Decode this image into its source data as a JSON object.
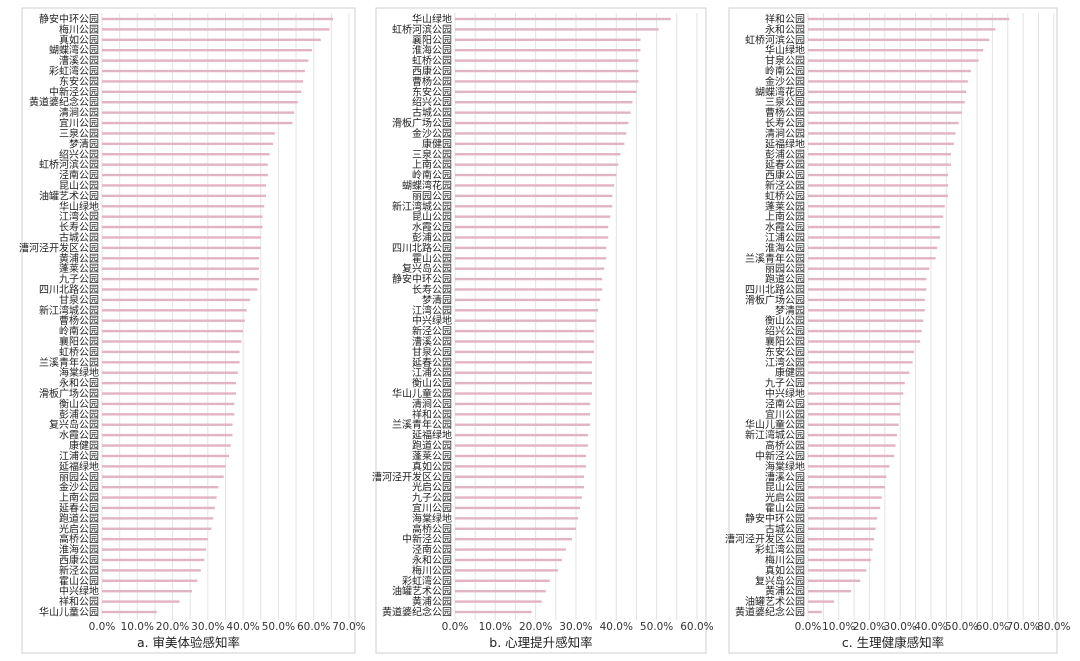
{
  "colors": {
    "bar": "#e2b3c3",
    "grid": "#e3e3e3",
    "panel_border": "#cfcfcf",
    "text": "#222222"
  },
  "chart_data": [
    {
      "type": "bar",
      "orientation": "horizontal",
      "caption": "a. 审美体验感知率",
      "xlim": [
        0,
        0.72
      ],
      "x_ticks": [
        "0.0%",
        "10.0%",
        "20.0%",
        "30.0%",
        "40.0%",
        "50.0%",
        "60.0%",
        "70.0%"
      ],
      "grid": true,
      "categories": [
        "静安中环公园",
        "梅川公园",
        "真如公园",
        "蝴蝶湾公园",
        "漕溪公园",
        "彩虹湾公园",
        "东安公园",
        "中新泾公园",
        "黄道婆纪念公园",
        "清涧公园",
        "宜川公园",
        "三泉公园",
        "梦清园",
        "绍兴公园",
        "虹桥河滨公园",
        "泾南公园",
        "昆山公园",
        "油罐艺术公园",
        "华山绿地",
        "江湾公园",
        "长寿公园",
        "古城公园",
        "漕河泾开发区公园",
        "黄浦公园",
        "蓬莱公园",
        "九子公园",
        "四川北路公园",
        "甘泉公园",
        "新江湾城公园",
        "曹杨公园",
        "岭南公园",
        "襄阳公园",
        "虹桥公园",
        "兰溪青年公园",
        "海棠绿地",
        "永和公园",
        "滑板广场公园",
        "衡山公园",
        "彭浦公园",
        "复兴岛公园",
        "水霞公园",
        "康健园",
        "江浦公园",
        "延福绿地",
        "丽园公园",
        "金沙公园",
        "上南公园",
        "延春公园",
        "跑道公园",
        "光启公园",
        "高桥公园",
        "淮海公园",
        "西康公园",
        "新泾公园",
        "霍山公园",
        "中兴绿地",
        "祥和公园",
        "华山儿童公园"
      ],
      "values": [
        0.655,
        0.645,
        0.62,
        0.595,
        0.585,
        0.575,
        0.57,
        0.565,
        0.555,
        0.545,
        0.54,
        0.49,
        0.485,
        0.475,
        0.47,
        0.47,
        0.465,
        0.465,
        0.46,
        0.455,
        0.455,
        0.45,
        0.45,
        0.445,
        0.445,
        0.445,
        0.44,
        0.42,
        0.41,
        0.405,
        0.4,
        0.395,
        0.39,
        0.39,
        0.385,
        0.38,
        0.38,
        0.375,
        0.375,
        0.37,
        0.37,
        0.365,
        0.36,
        0.35,
        0.345,
        0.33,
        0.325,
        0.32,
        0.315,
        0.31,
        0.3,
        0.295,
        0.29,
        0.28,
        0.27,
        0.255,
        0.22,
        0.155
      ]
    },
    {
      "type": "bar",
      "orientation": "horizontal",
      "caption": "b. 心理提升感知率",
      "xlim": [
        0,
        0.62
      ],
      "x_ticks": [
        "0.0%",
        "10.0%",
        "20.0%",
        "30.0%",
        "40.0%",
        "50.0%",
        "60.0%"
      ],
      "grid": true,
      "categories": [
        "华山绿地",
        "虹桥河滨公园",
        "襄阳公园",
        "淮海公园",
        "虹桥公园",
        "西康公园",
        "曹杨公园",
        "东安公园",
        "绍兴公园",
        "古城公园",
        "滑板广场公园",
        "金沙公园",
        "康健园",
        "三泉公园",
        "上南公园",
        "岭南公园",
        "蝴蝶湾花园",
        "丽园公园",
        "新江湾城公园",
        "昆山公园",
        "水霞公园",
        "彭浦公园",
        "四川北路公园",
        "霍山公园",
        "复兴岛公园",
        "静安中环公园",
        "长寿公园",
        "梦清园",
        "江湾公园",
        "中兴绿地",
        "新泾公园",
        "漕溪公园",
        "甘泉公园",
        "延春公园",
        "江浦公园",
        "衡山公园",
        "华山儿童公园",
        "清涧公园",
        "祥和公园",
        "兰溪青年公园",
        "延福绿地",
        "跑道公园",
        "蓬莱公园",
        "真如公园",
        "漕河泾开发区公园",
        "光启公园",
        "九子公园",
        "宜川公园",
        "海棠绿地",
        "高桥公园",
        "中新泾公园",
        "泾南公园",
        "永和公园",
        "梅川公园",
        "彩虹湾公园",
        "油罐艺术公园",
        "黄浦公园",
        "黄道婆纪念公园"
      ],
      "values": [
        0.535,
        0.505,
        0.46,
        0.46,
        0.455,
        0.455,
        0.455,
        0.45,
        0.44,
        0.435,
        0.43,
        0.425,
        0.42,
        0.41,
        0.405,
        0.4,
        0.395,
        0.39,
        0.39,
        0.385,
        0.38,
        0.38,
        0.375,
        0.375,
        0.37,
        0.365,
        0.365,
        0.36,
        0.355,
        0.35,
        0.345,
        0.345,
        0.345,
        0.34,
        0.34,
        0.34,
        0.34,
        0.335,
        0.335,
        0.335,
        0.33,
        0.33,
        0.325,
        0.325,
        0.32,
        0.32,
        0.315,
        0.31,
        0.305,
        0.3,
        0.29,
        0.275,
        0.265,
        0.255,
        0.235,
        0.225,
        0.215,
        0.19
      ]
    },
    {
      "type": "bar",
      "orientation": "horizontal",
      "caption": "c. 生理健康感知率",
      "xlim": [
        0,
        0.82
      ],
      "x_ticks": [
        "0.0%",
        "10.0%",
        "20.0%",
        "30.0%",
        "40.0%",
        "50.0%",
        "60.0%",
        "70.0%",
        "80.0%"
      ],
      "grid": true,
      "categories": [
        "祥和公园",
        "永和公园",
        "虹桥河滨公园",
        "华山绿地",
        "甘泉公园",
        "岭南公园",
        "金沙公园",
        "蝴蝶湾花园",
        "三泉公园",
        "曹杨公园",
        "长寿公园",
        "清涧公园",
        "延福绿地",
        "彭浦公园",
        "延春公园",
        "西康公园",
        "新泾公园",
        "虹桥公园",
        "蓬莱公园",
        "上南公园",
        "水霞公园",
        "江浦公园",
        "淮海公园",
        "兰溪青年公园",
        "丽园公园",
        "跑道公园",
        "四川北路公园",
        "滑板广场公园",
        "梦清园",
        "衡山公园",
        "绍兴公园",
        "襄阳公园",
        "东安公园",
        "江湾公园",
        "康健园",
        "九子公园",
        "中兴绿地",
        "泾南公园",
        "宜川公园",
        "华山儿童公园",
        "新江湾城公园",
        "高桥公园",
        "中新泾公园",
        "海棠绿地",
        "漕溪公园",
        "昆山公园",
        "光启公园",
        "霍山公园",
        "静安中环公园",
        "古城公园",
        "漕河泾开发区公园",
        "彩虹湾公园",
        "梅川公园",
        "真如公园",
        "复兴岛公园",
        "黄浦公园",
        "油罐艺术公园",
        "黄道婆纪念公园"
      ],
      "values": [
        0.655,
        0.61,
        0.59,
        0.57,
        0.555,
        0.53,
        0.52,
        0.515,
        0.51,
        0.5,
        0.49,
        0.48,
        0.475,
        0.465,
        0.465,
        0.455,
        0.455,
        0.455,
        0.445,
        0.44,
        0.43,
        0.43,
        0.42,
        0.415,
        0.395,
        0.385,
        0.385,
        0.38,
        0.38,
        0.375,
        0.37,
        0.365,
        0.345,
        0.34,
        0.33,
        0.315,
        0.31,
        0.3,
        0.3,
        0.295,
        0.29,
        0.285,
        0.28,
        0.265,
        0.255,
        0.25,
        0.24,
        0.235,
        0.225,
        0.22,
        0.215,
        0.21,
        0.205,
        0.19,
        0.17,
        0.14,
        0.085,
        0.045
      ]
    }
  ]
}
